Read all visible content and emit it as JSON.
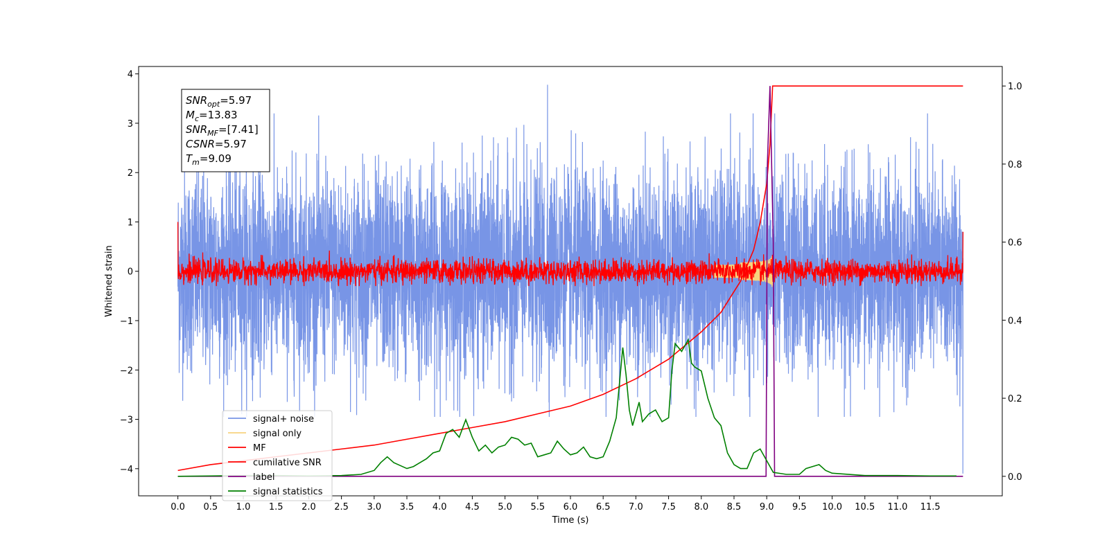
{
  "chart_data": {
    "type": "line",
    "xlabel": "Time (s)",
    "ylabel": "Whitened strain",
    "xlim": [
      -0.6,
      12.6
    ],
    "ylim": [
      -4.55,
      4.15
    ],
    "y2lim": [
      -0.05,
      1.05
    ],
    "grid": false,
    "legend_position": "lower-left",
    "x_ticks": [
      0.0,
      0.5,
      1.0,
      1.5,
      2.0,
      2.5,
      3.0,
      3.5,
      4.0,
      4.5,
      5.0,
      5.5,
      6.0,
      6.5,
      7.0,
      7.5,
      8.0,
      8.5,
      9.0,
      9.5,
      10.0,
      10.5,
      11.0,
      11.5
    ],
    "x_tick_labels": [
      "0.0",
      "0.5",
      "1.0",
      "1.5",
      "2.0",
      "2.5",
      "3.0",
      "3.5",
      "4.0",
      "4.5",
      "5.0",
      "5.5",
      "6.0",
      "6.5",
      "7.0",
      "7.5",
      "8.0",
      "8.5",
      "9.0",
      "9.5",
      "10.0",
      "10.5",
      "11.0",
      "11.5"
    ],
    "y_ticks": [
      -4,
      -3,
      -2,
      -1,
      0,
      1,
      2,
      3,
      4
    ],
    "y_tick_labels": [
      "−4",
      "−3",
      "−2",
      "−1",
      "0",
      "1",
      "2",
      "3",
      "4"
    ],
    "y2_ticks": [
      0.0,
      0.2,
      0.4,
      0.6,
      0.8,
      1.0
    ],
    "y2_tick_labels": [
      "0.0",
      "0.2",
      "0.4",
      "0.6",
      "0.8",
      "1.0"
    ],
    "annotation": [
      {
        "sym": "SNR",
        "sub": "opt",
        "val": "=5.97"
      },
      {
        "sym": "M",
        "sub": "c",
        "val": "=13.83"
      },
      {
        "sym": "SNR",
        "sub": "MF",
        "val": "=[7.41]"
      },
      {
        "sym": "CSNR",
        "sub": "",
        "val": "=5.97"
      },
      {
        "sym": "T",
        "sub": "m",
        "val": "=9.09"
      }
    ],
    "series": [
      {
        "name": "signal+ noise",
        "color": "#7895e6",
        "axis": "left",
        "kind": "noise",
        "x_range": [
          0,
          12
        ],
        "amplitude_std": 1.0,
        "peak": [
          5.65,
          3.78
        ],
        "min": [
          11.98,
          -4.1
        ]
      },
      {
        "name": "signal only",
        "color": "#f7d37e",
        "axis": "left",
        "kind": "chirp",
        "merger_time": 9.09
      },
      {
        "name": "MF",
        "color": "#ff0000",
        "axis": "left",
        "kind": "noise",
        "x_range": [
          0,
          12
        ],
        "amplitude_std": 0.12,
        "start": [
          0.0,
          1.0
        ],
        "end": [
          12.0,
          0.8
        ]
      },
      {
        "name": "cumilative SNR",
        "color": "#ff0000",
        "axis": "right",
        "x": [
          0.0,
          0.5,
          1.0,
          1.5,
          2.0,
          2.5,
          3.0,
          3.5,
          4.0,
          4.5,
          5.0,
          5.5,
          6.0,
          6.5,
          7.0,
          7.5,
          8.0,
          8.3,
          8.6,
          8.8,
          8.9,
          9.0,
          9.05,
          9.09,
          9.1,
          12.0
        ],
        "y": [
          0.015,
          0.03,
          0.04,
          0.05,
          0.06,
          0.07,
          0.08,
          0.095,
          0.11,
          0.125,
          0.14,
          0.16,
          0.18,
          0.21,
          0.25,
          0.3,
          0.37,
          0.42,
          0.5,
          0.58,
          0.65,
          0.75,
          0.85,
          1.0,
          1.0,
          1.0
        ]
      },
      {
        "name": "label",
        "color": "#800080",
        "axis": "right",
        "x": [
          0.0,
          8.99,
          9.01,
          9.05,
          9.1,
          9.12,
          12.0
        ],
        "y": [
          0.0,
          0.0,
          0.8,
          1.0,
          0.6,
          0.0,
          0.0
        ]
      },
      {
        "name": "signal statistics",
        "color": "#008000",
        "axis": "right",
        "x": [
          0.0,
          0.5,
          1.0,
          1.5,
          2.0,
          2.5,
          2.8,
          3.0,
          3.1,
          3.2,
          3.3,
          3.5,
          3.6,
          3.7,
          3.8,
          3.9,
          4.0,
          4.1,
          4.2,
          4.3,
          4.4,
          4.5,
          4.6,
          4.7,
          4.8,
          4.9,
          5.0,
          5.1,
          5.2,
          5.3,
          5.4,
          5.5,
          5.6,
          5.7,
          5.8,
          5.9,
          6.0,
          6.1,
          6.2,
          6.3,
          6.4,
          6.5,
          6.6,
          6.7,
          6.8,
          6.85,
          6.9,
          6.95,
          7.0,
          7.05,
          7.1,
          7.2,
          7.3,
          7.4,
          7.5,
          7.55,
          7.6,
          7.7,
          7.8,
          7.85,
          7.9,
          8.0,
          8.1,
          8.2,
          8.3,
          8.4,
          8.5,
          8.6,
          8.7,
          8.8,
          8.9,
          9.0,
          9.1,
          9.3,
          9.5,
          9.6,
          9.8,
          9.9,
          10.0,
          10.5,
          11.0,
          11.5,
          11.9
        ],
        "y": [
          0.0,
          0.001,
          0.002,
          0.002,
          0.001,
          0.002,
          0.005,
          0.015,
          0.035,
          0.05,
          0.035,
          0.02,
          0.025,
          0.035,
          0.045,
          0.06,
          0.065,
          0.11,
          0.12,
          0.1,
          0.145,
          0.1,
          0.065,
          0.08,
          0.06,
          0.075,
          0.08,
          0.1,
          0.095,
          0.08,
          0.085,
          0.05,
          0.055,
          0.06,
          0.09,
          0.07,
          0.055,
          0.06,
          0.075,
          0.05,
          0.045,
          0.05,
          0.09,
          0.15,
          0.33,
          0.26,
          0.17,
          0.13,
          0.16,
          0.19,
          0.14,
          0.16,
          0.17,
          0.14,
          0.15,
          0.27,
          0.34,
          0.32,
          0.35,
          0.29,
          0.28,
          0.27,
          0.2,
          0.15,
          0.13,
          0.06,
          0.03,
          0.02,
          0.02,
          0.06,
          0.07,
          0.04,
          0.01,
          0.005,
          0.005,
          0.02,
          0.03,
          0.015,
          0.008,
          0.002,
          0.002,
          0.001,
          0.001
        ]
      }
    ]
  }
}
